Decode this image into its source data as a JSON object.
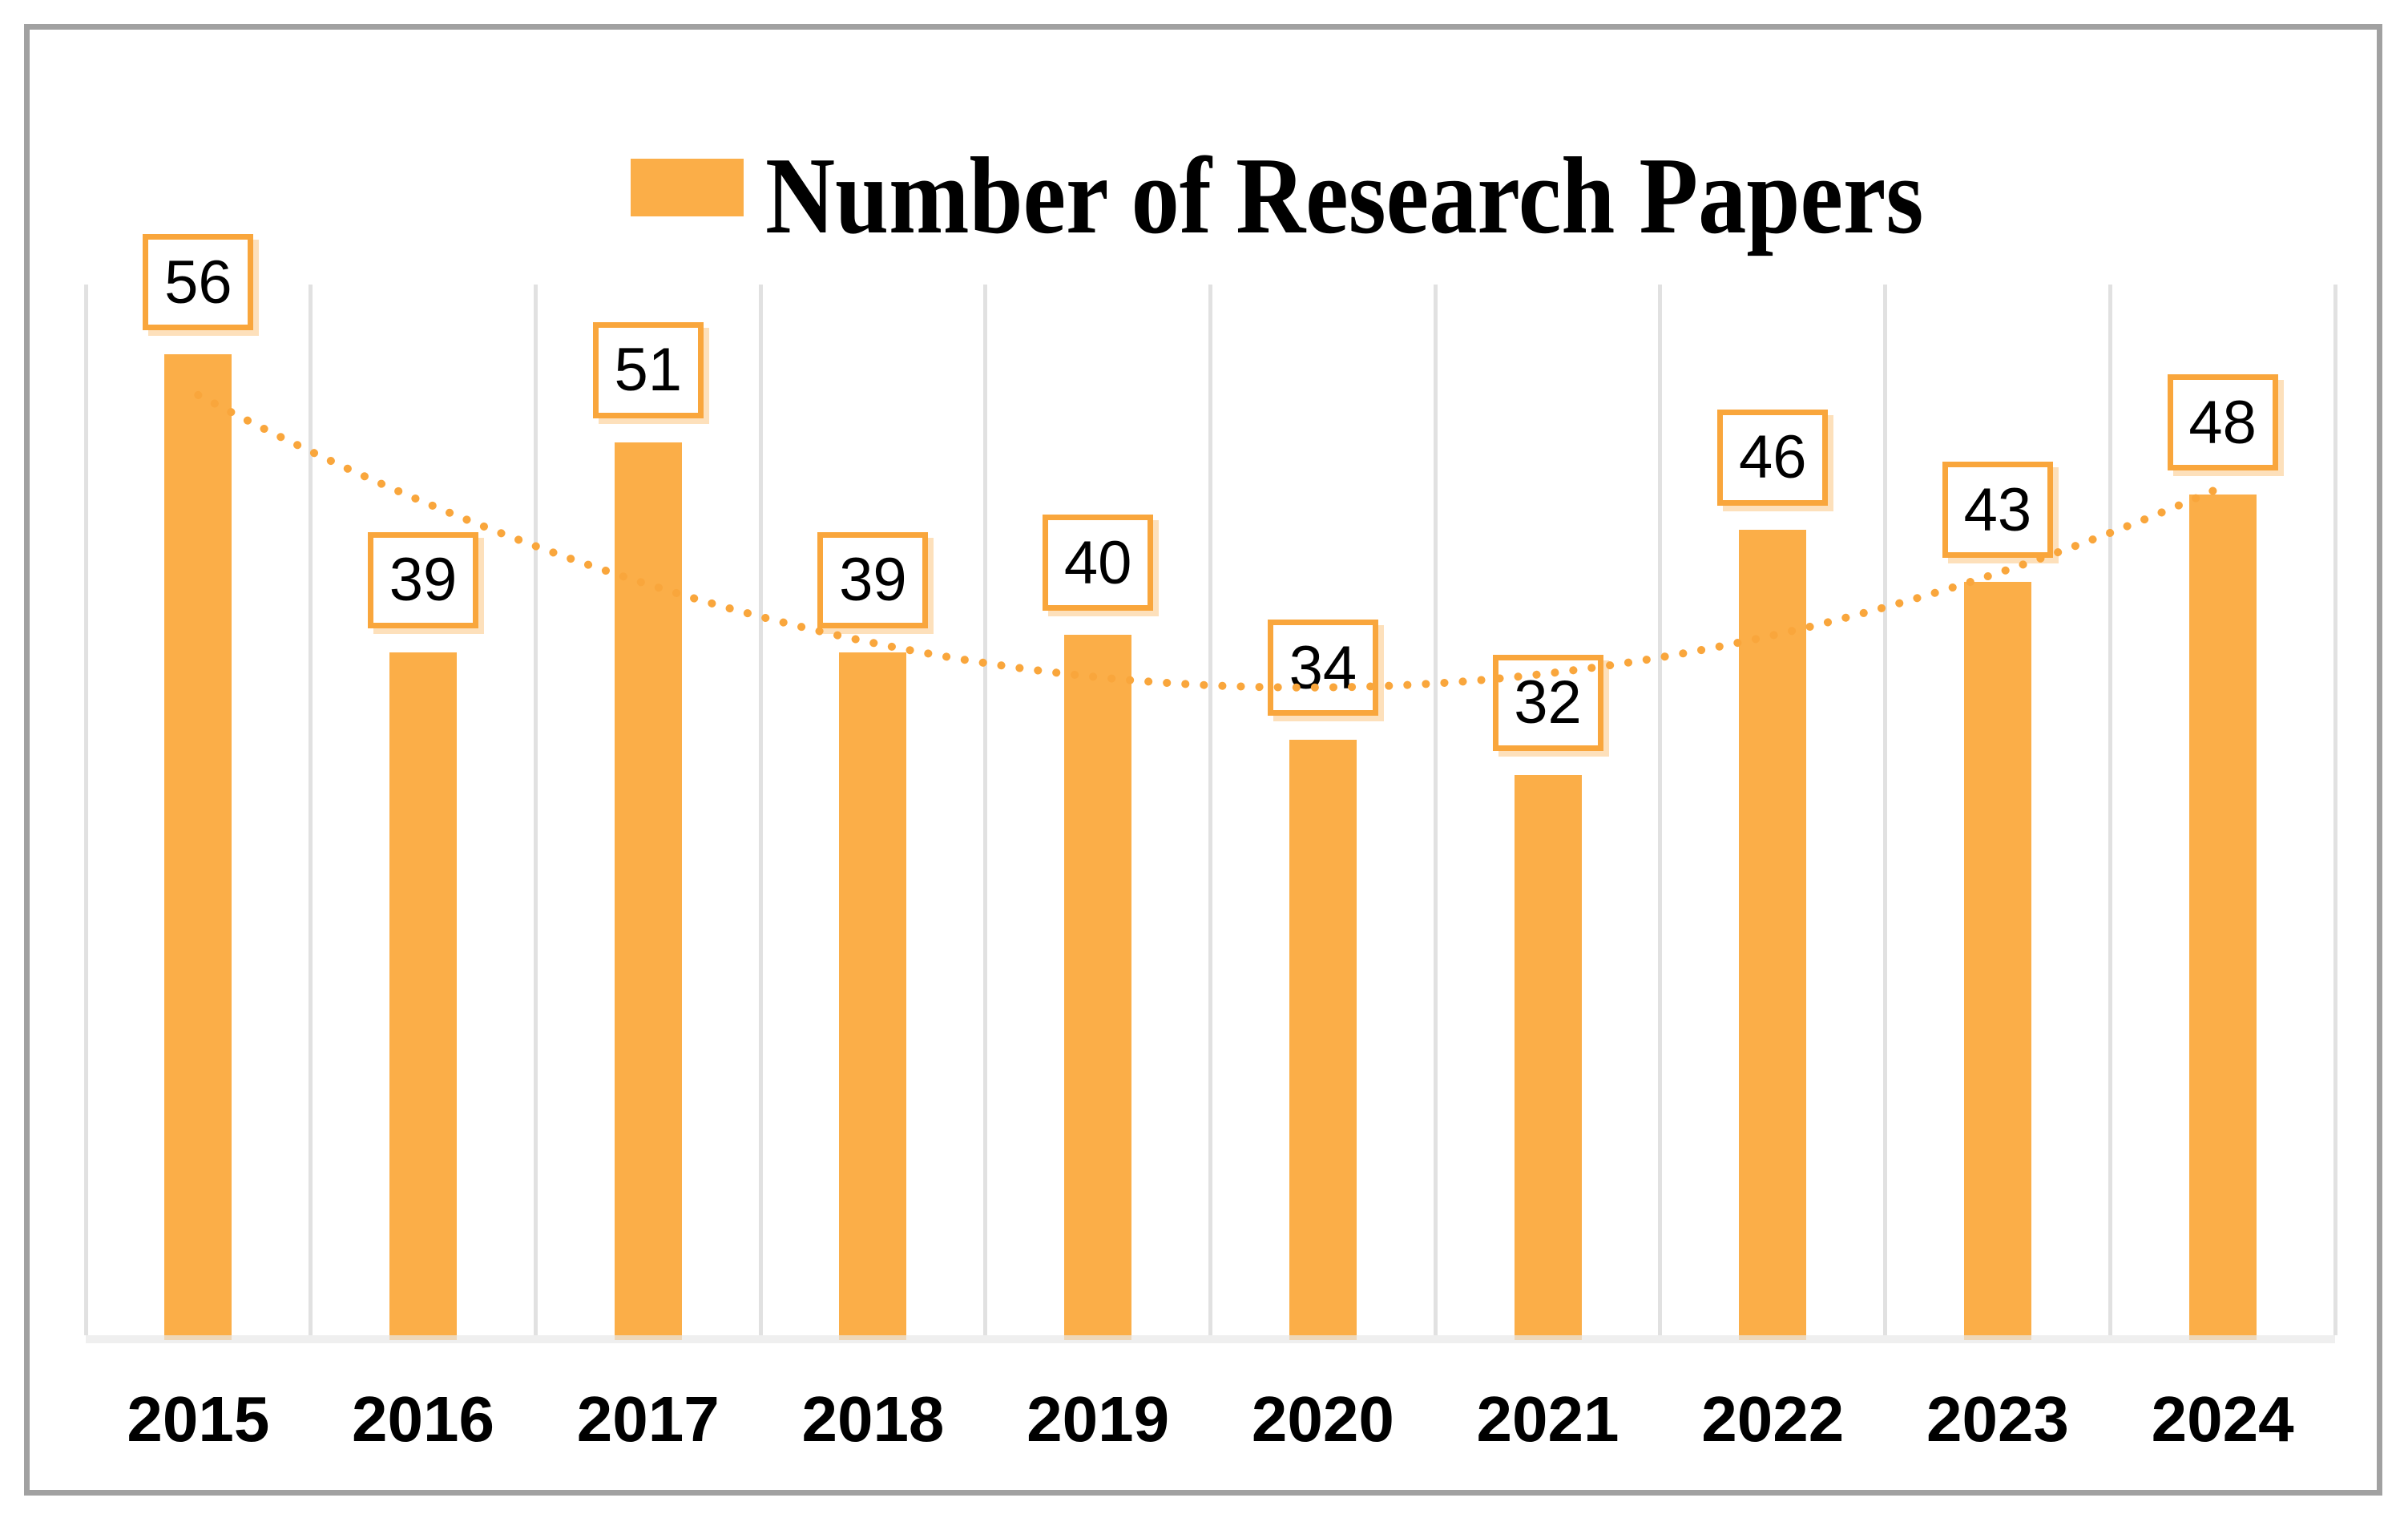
{
  "chart_data": {
    "type": "bar",
    "title": "Number of Research Papers",
    "legend": {
      "position": "top-center",
      "entries": [
        {
          "label": "Number of Research Papers",
          "swatch_color": "#FBAE48"
        }
      ]
    },
    "categories": [
      "2015",
      "2016",
      "2017",
      "2018",
      "2019",
      "2020",
      "2021",
      "2022",
      "2023",
      "2024"
    ],
    "series": [
      {
        "name": "Number of Research Papers",
        "values": [
          56,
          39,
          51,
          39,
          40,
          34,
          32,
          46,
          43,
          48
        ]
      }
    ],
    "data_labels": [
      "56",
      "39",
      "51",
      "39",
      "40",
      "34",
      "32",
      "46",
      "43",
      "48"
    ],
    "data_label_style": "boxed-above-bar",
    "xlabel": "",
    "ylabel": "",
    "ylim": [
      0,
      60
    ],
    "y_axis_visible": false,
    "grid": {
      "vertical": true,
      "horizontal": false
    },
    "trendline": {
      "type": "polynomial",
      "order": 2,
      "style": "dotted",
      "coefficients": {
        "a": 0.6894,
        "b": -6.7861,
        "c": 53.6909
      },
      "color": "#F9A63C"
    },
    "colors": {
      "bar": "#FBAE48",
      "label_box_border": "#F9A63C",
      "label_box_fill": "#FFFFFF",
      "trendline": "#F9A63C",
      "gridline": "#E1E1E1",
      "frame_border": "#A1A1A1",
      "text": "#000000",
      "background": "#FFFFFF"
    }
  }
}
